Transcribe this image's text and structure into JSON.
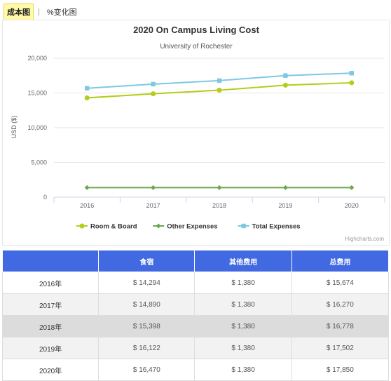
{
  "tabs": [
    {
      "label": "成本图",
      "active": true
    },
    {
      "label": "%变化图",
      "active": false
    }
  ],
  "tab_separator": "|",
  "chart_data": {
    "type": "line",
    "title": "2020 On Campus Living Cost",
    "subtitle": "University of Rochester",
    "xlabel": "",
    "ylabel": "USD ($)",
    "categories": [
      "2016",
      "2017",
      "2018",
      "2019",
      "2020"
    ],
    "ylim": [
      0,
      20000
    ],
    "yticks": [
      0,
      5000,
      10000,
      15000,
      20000
    ],
    "ytick_labels": [
      "0",
      "5,000",
      "10,000",
      "15,000",
      "20,000"
    ],
    "grid": true,
    "legend_position": "bottom",
    "series": [
      {
        "name": "Room & Board",
        "values": [
          14294,
          14890,
          15398,
          16122,
          16470
        ],
        "color": "#b5cc18",
        "marker": "circle"
      },
      {
        "name": "Other Expenses",
        "values": [
          1380,
          1380,
          1380,
          1380,
          1380
        ],
        "color": "#6aa84f",
        "marker": "diamond"
      },
      {
        "name": "Total Expenses",
        "values": [
          15674,
          16270,
          16778,
          17502,
          17850
        ],
        "color": "#7ec8e3",
        "marker": "square"
      }
    ],
    "credits": "Highcharts.com"
  },
  "table": {
    "headers": [
      "",
      "食宿",
      "其他费用",
      "总费用"
    ],
    "rows": [
      [
        "2016年",
        "$ 14,294",
        "$ 1,380",
        "$ 15,674"
      ],
      [
        "2017年",
        "$ 14,890",
        "$ 1,380",
        "$ 16,270"
      ],
      [
        "2018年",
        "$ 15,398",
        "$ 1,380",
        "$ 16,778"
      ],
      [
        "2019年",
        "$ 16,122",
        "$ 1,380",
        "$ 17,502"
      ],
      [
        "2020年",
        "$ 16,470",
        "$ 1,380",
        "$ 17,850"
      ]
    ],
    "header_color": "#4169e1"
  }
}
